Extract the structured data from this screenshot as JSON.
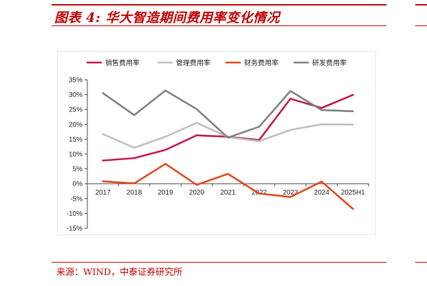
{
  "title": "图表 4:  华大智造期间费用率变化情况",
  "source": "来源：WIND，中泰证券研究所",
  "chart_data": {
    "type": "line",
    "categories": [
      "2017",
      "2018",
      "2019",
      "2020",
      "2021",
      "2022",
      "2023",
      "2024",
      "2025H1"
    ],
    "ytick_labels": [
      "35%",
      "30%",
      "25%",
      "20%",
      "15%",
      "10%",
      "5%",
      "0%",
      "-5%",
      "-10%",
      "-15%"
    ],
    "ylim": [
      -15,
      35
    ],
    "legend_position": "top",
    "grid": false,
    "series": [
      {
        "name": "销售费用率",
        "color": "#c0184a",
        "values": [
          7.8,
          8.6,
          11.4,
          16.3,
          15.8,
          14.7,
          28.6,
          25.5,
          29.9
        ]
      },
      {
        "name": "管理费用率",
        "color": "#bfbfbf",
        "values": [
          16.7,
          12.1,
          15.8,
          20.5,
          15.7,
          14.3,
          18.1,
          20.0,
          19.9
        ]
      },
      {
        "name": "财务费用率",
        "color": "#e0481c",
        "values": [
          0.8,
          0.1,
          6.7,
          -0.4,
          3.3,
          -3.3,
          -4.5,
          0.7,
          -8.5
        ]
      },
      {
        "name": "研发费用率",
        "color": "#7f7f7f",
        "values": [
          30.5,
          23.1,
          31.4,
          25.1,
          15.5,
          19.2,
          31.2,
          24.8,
          24.4
        ]
      }
    ]
  }
}
